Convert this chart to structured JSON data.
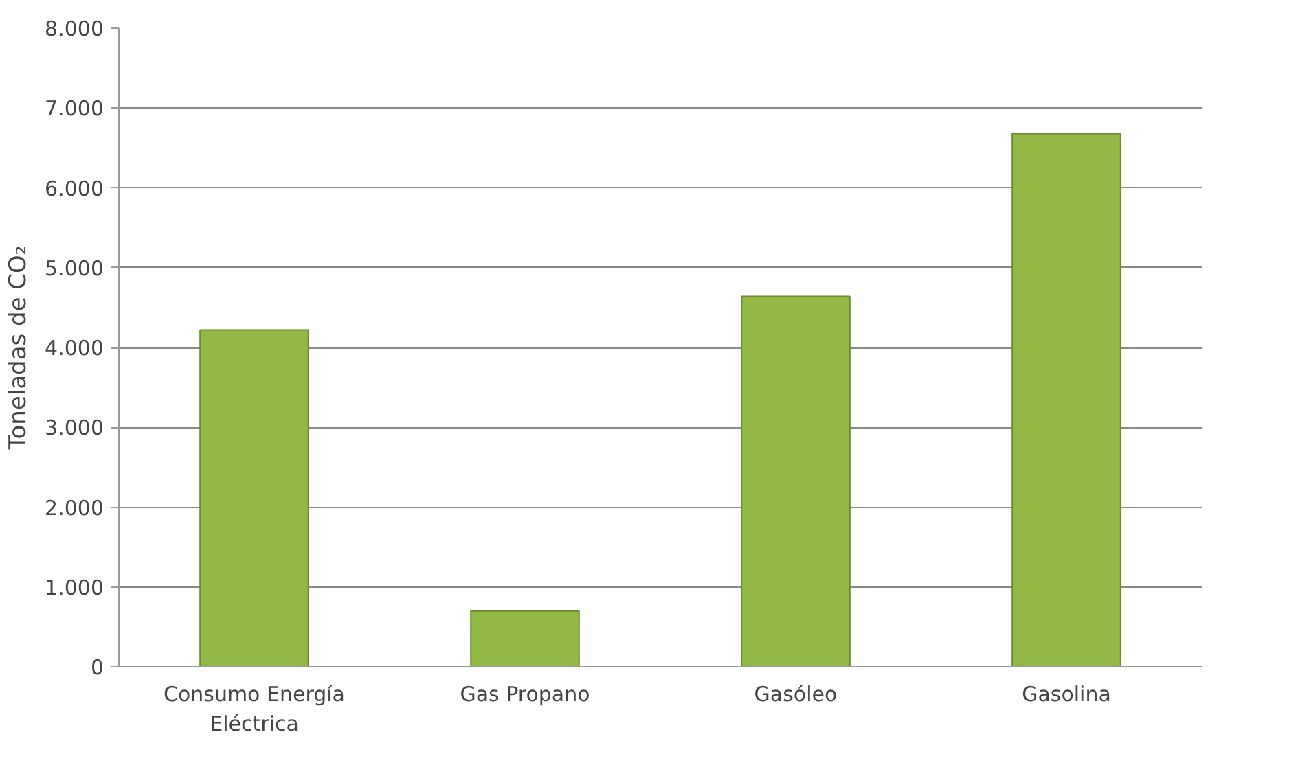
{
  "chart_data": {
    "type": "bar",
    "ylabel": "Toneladas de CO₂",
    "categories": [
      "Consumo Energía\nEléctrica",
      "Gas Propano",
      "Gasóleo",
      "Gasolina"
    ],
    "values": [
      4220,
      700,
      4640,
      6680
    ],
    "color": "#92b945",
    "ylim": [
      0,
      8000
    ],
    "yticks": [
      {
        "value": 0,
        "label": "0"
      },
      {
        "value": 1000,
        "label": "1.000"
      },
      {
        "value": 2000,
        "label": "2.000"
      },
      {
        "value": 3000,
        "label": "3.000"
      },
      {
        "value": 4000,
        "label": "4.000"
      },
      {
        "value": 5000,
        "label": "5.000"
      },
      {
        "value": 6000,
        "label": "6.000"
      },
      {
        "value": 7000,
        "label": "7.000"
      },
      {
        "value": 8000,
        "label": "8.000"
      }
    ],
    "grid": "y"
  }
}
